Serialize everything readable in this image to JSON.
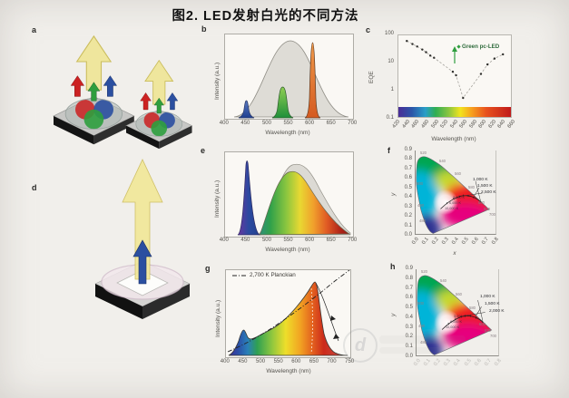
{
  "figure": {
    "title": "图2.  LED发射白光的不同方法"
  },
  "panels": {
    "a": {
      "label": "a",
      "description": "two RGB multi-chip LED packages emitting red, green and blue beams mixing to white"
    },
    "b": {
      "label": "b",
      "ylabel": "Intensity (a.u.)",
      "xlabel": "Wavelength (nm)",
      "xticks": [
        "400",
        "450",
        "500",
        "550",
        "600",
        "650",
        "700"
      ]
    },
    "c": {
      "label": "c",
      "ylabel": "EQE",
      "xlabel": "Wavelength (nm)",
      "yticks": [
        "100",
        "10",
        "1",
        "0.1"
      ],
      "xticks": [
        "420",
        "440",
        "460",
        "480",
        "500",
        "520",
        "540",
        "560",
        "580",
        "600",
        "620",
        "640",
        "660"
      ],
      "annotation": "Green pc-LED"
    },
    "d": {
      "label": "d",
      "description": "phosphor-converted LED: blue chip on black package emitting white beam"
    },
    "e": {
      "label": "e",
      "ylabel": "Intensity (a.u.)",
      "xlabel": "Wavelength (nm)",
      "xticks": [
        "400",
        "450",
        "500",
        "550",
        "600",
        "650",
        "700"
      ]
    },
    "f": {
      "label": "f",
      "xlabel": "x",
      "ylabel": "y",
      "yticks": [
        "0.9",
        "0.8",
        "0.7",
        "0.6",
        "0.5",
        "0.4",
        "0.3",
        "0.2",
        "0.1",
        "0.0"
      ],
      "xticks": [
        "0.0",
        "0.1",
        "0.2",
        "0.3",
        "0.4",
        "0.5",
        "0.6",
        "0.7",
        "0.8"
      ],
      "temp_labels": [
        "1,000 K",
        "1,500 K",
        "2,500 K"
      ],
      "locus_labels": [
        "3,000 K",
        "6,000 K",
        "10,000 K"
      ],
      "wl_labels": [
        "520",
        "540",
        "560",
        "580",
        "600",
        "620",
        "700",
        "500",
        "490",
        "480"
      ]
    },
    "g": {
      "label": "g",
      "legend": "2,700 K Planckian",
      "ylabel": "Intensity (a.u.)",
      "xlabel": "Wavelength (nm)",
      "xticks": [
        "400",
        "450",
        "500",
        "550",
        "600",
        "650",
        "700",
        "750"
      ]
    },
    "h": {
      "label": "h",
      "ylabel": "y",
      "yticks": [
        "0.9",
        "0.8",
        "0.7",
        "0.6",
        "0.5",
        "0.4",
        "0.3",
        "0.2",
        "0.1",
        "0.0"
      ],
      "xticks": [
        "0.0",
        "0.1",
        "0.2",
        "0.3",
        "0.4",
        "0.5",
        "0.6",
        "0.7",
        "0.8"
      ],
      "temp_labels": [
        "1,000 K",
        "1,500 K",
        "2,000 K"
      ],
      "locus_labels": [
        "3,000 K",
        "6,000 K",
        "10,000 K"
      ],
      "wl_labels": [
        "520",
        "540",
        "560",
        "580",
        "600",
        "620",
        "700",
        "500",
        "490",
        "480"
      ]
    }
  },
  "watermark": {
    "logo_letter": "d"
  },
  "chart_data": [
    {
      "panel": "b",
      "type": "area",
      "xlabel": "Wavelength (nm)",
      "ylabel": "Intensity (a.u.)",
      "xlim": [
        400,
        700
      ],
      "grid": false,
      "series": [
        {
          "name": "white-mix envelope",
          "color": "#dedcd6",
          "peak_nm": 555,
          "fwhm_nm": 110,
          "rel_intensity": 1.0
        },
        {
          "name": "blue LED",
          "color": "#2b4fa0",
          "peak_nm": 450,
          "fwhm_nm": 20,
          "rel_intensity": 0.23
        },
        {
          "name": "green LED",
          "color": "#2f9e3e",
          "peak_nm": 535,
          "fwhm_nm": 30,
          "rel_intensity": 0.4
        },
        {
          "name": "orange-red LED",
          "color": "#d95f26",
          "peak_nm": 605,
          "fwhm_nm": 16,
          "rel_intensity": 0.97
        }
      ]
    },
    {
      "panel": "c",
      "type": "scatter",
      "xlabel": "Wavelength (nm)",
      "ylabel": "EQE",
      "yscale": "log",
      "ylim": [
        0.1,
        100
      ],
      "xlim": [
        420,
        660
      ],
      "x": [
        438,
        450,
        460,
        471,
        479,
        488,
        496,
        536,
        543,
        558,
        596,
        610,
        625,
        643
      ],
      "y": [
        62,
        48,
        39,
        30,
        24,
        18,
        15,
        4.6,
        3.4,
        0.5,
        3.8,
        8.5,
        14,
        20
      ],
      "annotation": "Green pc-LED arrow at 540 nm spanning EQE ~10 to ~35",
      "colorbar": "visible-spectrum strip 420-660 nm along bottom of axes"
    },
    {
      "panel": "e",
      "type": "area",
      "xlabel": "Wavelength (nm)",
      "ylabel": "Intensity (a.u.)",
      "xlim": [
        400,
        700
      ],
      "series": [
        {
          "name": "white envelope",
          "color": "#dcdad4",
          "peak_nm": 558,
          "rel_intensity": 0.87
        },
        {
          "name": "blue LED line",
          "color": "#2b4aa0",
          "peak_nm": 452,
          "fwhm_nm": 18,
          "rel_intensity": 0.93
        },
        {
          "name": "phosphor band (rainbow fill)",
          "peak_nm": 548,
          "range_nm": [
            480,
            700
          ],
          "rel_intensity": 0.78
        }
      ]
    },
    {
      "panel": "g",
      "type": "area",
      "xlabel": "Wavelength (nm)",
      "ylabel": "Intensity (a.u.)",
      "xlim": [
        400,
        750
      ],
      "legend": [
        "2,700 K Planckian"
      ],
      "series": [
        {
          "name": "warm-white LED spectrum (rainbow fill)",
          "points_nm_rel": [
            [
              400,
              0.02
            ],
            [
              450,
              0.3
            ],
            [
              470,
              0.22
            ],
            [
              500,
              0.24
            ],
            [
              550,
              0.35
            ],
            [
              600,
              0.57
            ],
            [
              640,
              0.83
            ],
            [
              650,
              0.86
            ],
            [
              670,
              0.55
            ],
            [
              700,
              0.12
            ],
            [
              750,
              0.02
            ]
          ]
        },
        {
          "name": "2,700 K Planckian",
          "style": "dash-dot",
          "points_nm_rel": [
            [
              400,
              0.07
            ],
            [
              500,
              0.35
            ],
            [
              600,
              0.62
            ],
            [
              700,
              0.92
            ],
            [
              750,
              1.0
            ]
          ]
        }
      ]
    },
    {
      "panel": "f",
      "type": "area",
      "subtype": "CIE 1931 chromaticity diagram",
      "xlabel": "x",
      "ylabel": "y",
      "xlim": [
        0,
        0.8
      ],
      "ylim": [
        0,
        0.9
      ],
      "planckian_locus_labels": [
        "1,000 K",
        "1,500 K",
        "2,500 K",
        "3,000 K",
        "6,000 K",
        "10,000 K"
      ],
      "spectral_locus_wavelengths_nm": [
        380,
        460,
        470,
        480,
        490,
        500,
        510,
        520,
        540,
        560,
        580,
        600,
        620,
        700
      ]
    },
    {
      "panel": "h",
      "type": "area",
      "subtype": "CIE 1931 chromaticity diagram",
      "xlabel": "x",
      "ylabel": "y",
      "xlim": [
        0,
        0.8
      ],
      "ylim": [
        0,
        0.9
      ],
      "planckian_locus_labels": [
        "1,000 K",
        "1,500 K",
        "2,000 K",
        "3,000 K",
        "6,000 K",
        "10,000 K"
      ],
      "spectral_locus_wavelengths_nm": [
        380,
        460,
        470,
        480,
        490,
        500,
        510,
        520,
        540,
        560,
        580,
        600,
        620,
        700
      ]
    }
  ]
}
